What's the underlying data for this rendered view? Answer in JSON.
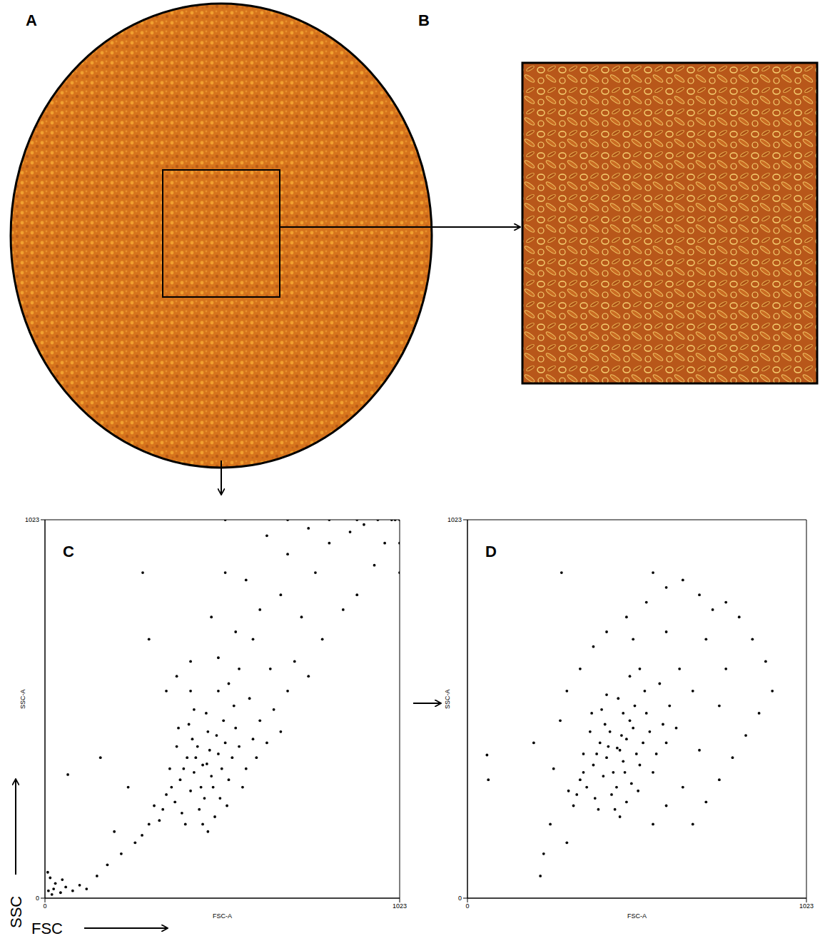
{
  "image_panels": [
    {
      "label": "A"
    },
    {
      "label": "B"
    }
  ],
  "axis_arrows": {
    "x": "FSC",
    "y": "SSC"
  },
  "chart_data": [
    {
      "type": "scatter",
      "panel_label": "C",
      "x_label": "FSC-A",
      "y_label": "SSC-A",
      "color": "#000000",
      "marker": "circle",
      "xlim": [
        0,
        1023
      ],
      "ylim": [
        0,
        1023
      ],
      "xticks": [
        0,
        1023
      ],
      "yticks": [
        0,
        1023
      ],
      "x": [
        467,
        430,
        500,
        450,
        520,
        410,
        480,
        440,
        510,
        390,
        460,
        540,
        420,
        495,
        455,
        375,
        530,
        470,
        400,
        445,
        560,
        485,
        425,
        505,
        365,
        550,
        435,
        515,
        395,
        475,
        580,
        350,
        490,
        545,
        415,
        600,
        380,
        465,
        525,
        340,
        620,
        455,
        570,
        405,
        590,
        360,
        500,
        430,
        640,
        330,
        470,
        610,
        385,
        530,
        315,
        660,
        560,
        420,
        680,
        300,
        500,
        600,
        650,
        420,
        700,
        550,
        720,
        380,
        760,
        620,
        480,
        800,
        680,
        350,
        740,
        580,
        860,
        780,
        900,
        700,
        820,
        950,
        640,
        880,
        980,
        520,
        300,
        760,
        920,
        1000,
        520,
        700,
        820,
        900,
        960,
        1010,
        1023,
        1023,
        1023,
        10,
        20,
        30,
        15,
        45,
        60,
        25,
        80,
        100,
        8,
        50,
        120,
        150,
        180,
        220,
        260,
        200,
        280,
        240,
        160,
        282,
        66
      ],
      "values": [
        363,
        340,
        390,
        300,
        420,
        380,
        330,
        410,
        350,
        320,
        270,
        380,
        290,
        440,
        360,
        260,
        320,
        450,
        350,
        240,
        410,
        300,
        430,
        270,
        300,
        460,
        380,
        480,
        230,
        400,
        350,
        280,
        220,
        520,
        470,
        430,
        410,
        500,
        250,
        240,
        480,
        200,
        300,
        200,
        540,
        350,
        560,
        510,
        420,
        210,
        180,
        380,
        460,
        580,
        250,
        510,
        620,
        560,
        450,
        200,
        650,
        700,
        620,
        640,
        560,
        720,
        640,
        600,
        600,
        780,
        760,
        700,
        820,
        560,
        760,
        860,
        780,
        880,
        820,
        930,
        960,
        900,
        980,
        990,
        960,
        880,
        700,
        1000,
        1010,
        1023,
        1023,
        1023,
        1023,
        1023,
        1023,
        1023,
        960,
        880,
        1023,
        20,
        10,
        40,
        55,
        15,
        30,
        25,
        20,
        35,
        70,
        50,
        25,
        60,
        90,
        120,
        150,
        180,
        170,
        300,
        380,
        880,
        334
      ]
    },
    {
      "type": "scatter",
      "panel_label": "D",
      "x_label": "FSC-A",
      "y_label": "SSC-A",
      "color": "#000000",
      "marker": "circle",
      "xlim": [
        0,
        1023
      ],
      "ylim": [
        0,
        1023
      ],
      "xticks": [
        0,
        1023
      ],
      "yticks": [
        0,
        1023
      ],
      "x": [
        452,
        420,
        480,
        440,
        500,
        400,
        470,
        430,
        510,
        380,
        450,
        530,
        410,
        490,
        460,
        360,
        520,
        470,
        390,
        435,
        550,
        475,
        415,
        495,
        350,
        540,
        425,
        505,
        385,
        465,
        570,
        340,
        480,
        535,
        405,
        590,
        370,
        455,
        515,
        330,
        610,
        445,
        560,
        395,
        580,
        350,
        490,
        420,
        630,
        320,
        460,
        600,
        375,
        520,
        305,
        250,
        230,
        220,
        260,
        200,
        280,
        300,
        340,
        380,
        420,
        480,
        540,
        600,
        560,
        650,
        700,
        740,
        780,
        820,
        860,
        900,
        920,
        880,
        840,
        800,
        760,
        720,
        680,
        640,
        720,
        780,
        680,
        760,
        600,
        500,
        700,
        650,
        600,
        560,
        300,
        63,
        59,
        284
      ],
      "values": [
        406,
        380,
        430,
        340,
        460,
        420,
        370,
        450,
        390,
        360,
        300,
        420,
        330,
        480,
        400,
        300,
        360,
        500,
        390,
        280,
        450,
        340,
        470,
        310,
        340,
        500,
        410,
        520,
        270,
        440,
        390,
        320,
        260,
        560,
        510,
        470,
        450,
        540,
        290,
        280,
        520,
        240,
        340,
        240,
        580,
        390,
        600,
        550,
        460,
        250,
        220,
        420,
        500,
        620,
        290,
        200,
        120,
        60,
        350,
        420,
        480,
        560,
        620,
        680,
        720,
        760,
        800,
        840,
        880,
        860,
        820,
        780,
        800,
        760,
        700,
        640,
        560,
        500,
        440,
        380,
        320,
        260,
        200,
        620,
        700,
        620,
        560,
        520,
        720,
        700,
        400,
        300,
        250,
        200,
        150,
        320,
        387,
        880
      ]
    }
  ]
}
